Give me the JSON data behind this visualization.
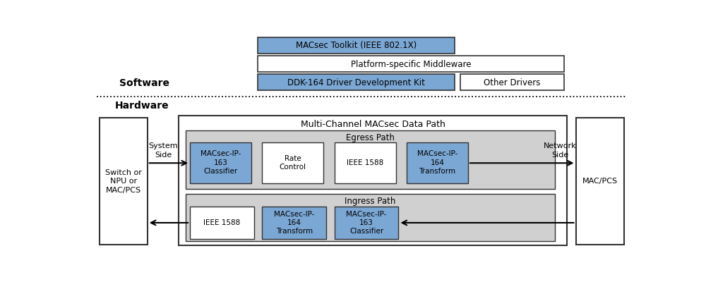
{
  "bg_color": "#ffffff",
  "blue_fill": "#7BA7D4",
  "gray_fill": "#D0D0D0",
  "white_fill": "#ffffff",
  "software_label": "Software",
  "hardware_label": "Hardware",
  "toolkit_label": "MACsec Toolkit (IEEE 802.1X)",
  "middleware_label": "Platform-specific Middleware",
  "ddk_label": "DDK-164 Driver Development Kit",
  "other_drivers_label": "Other Drivers",
  "multichannel_label": "Multi-Channel MACsec Data Path",
  "egress_label": "Egress Path",
  "ingress_label": "Ingress Path",
  "system_side_label": "System\nSide",
  "network_side_label": "Network\nSide",
  "switch_label": "Switch or\nNPU or\nMAC/PCS",
  "macpcs_label": "MAC/PCS",
  "egress_boxes": [
    {
      "label": "MACsec-IP-\n163\nClassifier",
      "fill": "#7BA7D4"
    },
    {
      "label": "Rate\nControl",
      "fill": "#ffffff"
    },
    {
      "label": "IEEE 1588",
      "fill": "#ffffff"
    },
    {
      "label": "MACsec-IP-\n164\nTransform",
      "fill": "#7BA7D4"
    }
  ],
  "ingress_boxes": [
    {
      "label": "IEEE 1588",
      "fill": "#ffffff"
    },
    {
      "label": "MACsec-IP-\n164\nTransform",
      "fill": "#7BA7D4"
    },
    {
      "label": "MACsec-IP-\n163\nClassifier",
      "fill": "#7BA7D4"
    }
  ]
}
